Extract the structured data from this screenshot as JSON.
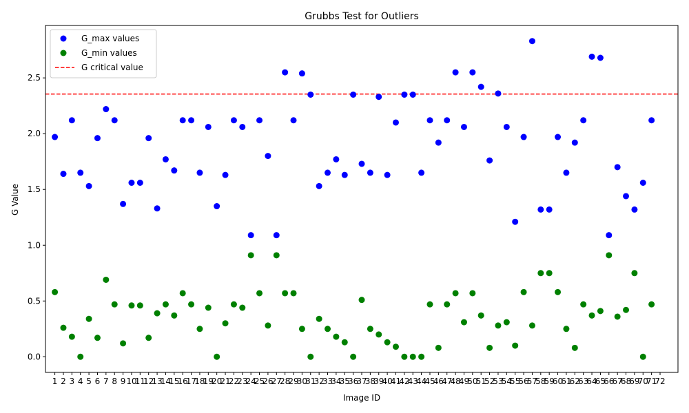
{
  "chart_data": {
    "type": "scatter",
    "title": "Grubbs Test for Outliers",
    "xlabel": "Image ID",
    "ylabel": "G Value",
    "x": [
      1,
      2,
      3,
      4,
      5,
      6,
      7,
      8,
      9,
      10,
      11,
      12,
      13,
      14,
      15,
      16,
      17,
      18,
      19,
      20,
      21,
      22,
      23,
      24,
      25,
      26,
      27,
      28,
      29,
      30,
      31,
      32,
      33,
      34,
      35,
      36,
      37,
      38,
      39,
      40,
      41,
      42,
      43,
      44,
      45,
      46,
      47,
      48,
      49,
      50,
      51,
      52,
      53,
      54,
      55,
      56,
      57,
      58,
      59,
      60,
      61,
      62,
      63,
      64,
      65,
      66,
      67,
      68,
      69,
      70,
      71,
      72
    ],
    "xticks": [
      "1",
      "2",
      "3",
      "4",
      "5",
      "6",
      "7",
      "8",
      "9",
      "10",
      "11",
      "12",
      "13",
      "14",
      "15",
      "16",
      "17",
      "18",
      "19",
      "20",
      "21",
      "22",
      "23",
      "24",
      "25",
      "26",
      "27",
      "28",
      "29",
      "30",
      "31",
      "32",
      "33",
      "34",
      "35",
      "36",
      "37",
      "38",
      "39",
      "40",
      "41",
      "42",
      "43",
      "44",
      "45",
      "46",
      "47",
      "48",
      "49",
      "50",
      "51",
      "52",
      "53",
      "54",
      "55",
      "56",
      "57",
      "58",
      "59",
      "60",
      "61",
      "62",
      "63",
      "64",
      "65",
      "66",
      "67",
      "68",
      "69",
      "70",
      "71",
      "72"
    ],
    "xlim": [
      -0.1,
      74.1
    ],
    "ylim": [
      -0.14,
      2.97
    ],
    "yticks": [
      0.0,
      0.5,
      1.0,
      1.5,
      2.0,
      2.5
    ],
    "ytick_labels": [
      "0.0",
      "0.5",
      "1.0",
      "1.5",
      "2.0",
      "2.5"
    ],
    "grid": false,
    "legend_position": "upper-left",
    "series": [
      {
        "name": "G_max values",
        "color": "#0000ff",
        "marker": "circle",
        "x": [
          1,
          2,
          3,
          4,
          5,
          6,
          7,
          8,
          9,
          10,
          11,
          12,
          13,
          14,
          15,
          16,
          17,
          18,
          19,
          20,
          21,
          22,
          23,
          24,
          25,
          26,
          27,
          28,
          29,
          30,
          31,
          32,
          33,
          34,
          35,
          36,
          37,
          38,
          39,
          40,
          41,
          42,
          43,
          44,
          45,
          46,
          47,
          48,
          49,
          50,
          51,
          52,
          53,
          54,
          55,
          56,
          57,
          58,
          59,
          60,
          61,
          62,
          63,
          64,
          65,
          66,
          67,
          68,
          69,
          70,
          71
        ],
        "values": [
          1.97,
          1.64,
          2.12,
          1.65,
          1.53,
          1.96,
          2.22,
          2.12,
          1.37,
          1.56,
          1.56,
          1.96,
          1.33,
          1.77,
          1.67,
          2.12,
          2.12,
          1.65,
          2.06,
          1.35,
          1.63,
          2.12,
          2.06,
          1.09,
          2.12,
          1.8,
          1.09,
          2.55,
          2.12,
          2.54,
          2.35,
          1.53,
          1.65,
          1.77,
          1.63,
          2.35,
          1.73,
          1.65,
          2.33,
          1.63,
          2.1,
          2.35,
          2.35,
          1.65,
          2.12,
          1.92,
          2.12,
          2.55,
          2.06,
          2.55,
          2.42,
          1.76,
          2.36,
          2.06,
          1.21,
          1.97,
          2.83,
          1.32,
          1.32,
          1.97,
          1.65,
          1.92,
          2.12,
          2.69,
          2.68,
          1.09,
          1.7,
          1.44,
          1.32,
          1.56,
          2.12
        ]
      },
      {
        "name": "G_min values",
        "color": "#008000",
        "marker": "circle",
        "x": [
          1,
          2,
          3,
          4,
          5,
          6,
          7,
          8,
          9,
          10,
          11,
          12,
          13,
          14,
          15,
          16,
          17,
          18,
          19,
          20,
          21,
          22,
          23,
          24,
          25,
          26,
          27,
          28,
          29,
          30,
          31,
          32,
          33,
          34,
          35,
          36,
          37,
          38,
          39,
          40,
          41,
          42,
          43,
          44,
          45,
          46,
          47,
          48,
          49,
          50,
          51,
          52,
          53,
          54,
          55,
          56,
          57,
          58,
          59,
          60,
          61,
          62,
          63,
          64,
          65,
          66,
          67,
          68,
          69,
          70,
          71
        ],
        "values": [
          0.58,
          0.26,
          0.18,
          0.0,
          0.34,
          0.17,
          0.69,
          0.47,
          0.12,
          0.46,
          0.46,
          0.17,
          0.39,
          0.47,
          0.37,
          0.57,
          0.47,
          0.25,
          0.44,
          0.0,
          0.3,
          0.47,
          0.44,
          0.91,
          0.57,
          0.28,
          0.91,
          0.57,
          0.57,
          0.25,
          0.0,
          0.34,
          0.25,
          0.18,
          0.13,
          0.0,
          0.51,
          0.25,
          0.2,
          0.13,
          0.09,
          0.0,
          0.0,
          0.0,
          0.47,
          0.08,
          0.47,
          0.57,
          0.31,
          0.57,
          0.37,
          0.08,
          0.28,
          0.31,
          0.1,
          0.58,
          0.28,
          0.75,
          0.75,
          0.58,
          0.25,
          0.08,
          0.47,
          0.37,
          0.41,
          0.91,
          0.36,
          0.42,
          0.75,
          0.0,
          0.47
        ]
      }
    ],
    "reference_line": {
      "name": "G critical value",
      "orientation": "horizontal",
      "y": 2.355,
      "color": "#ff0000",
      "style": "dashed"
    }
  }
}
